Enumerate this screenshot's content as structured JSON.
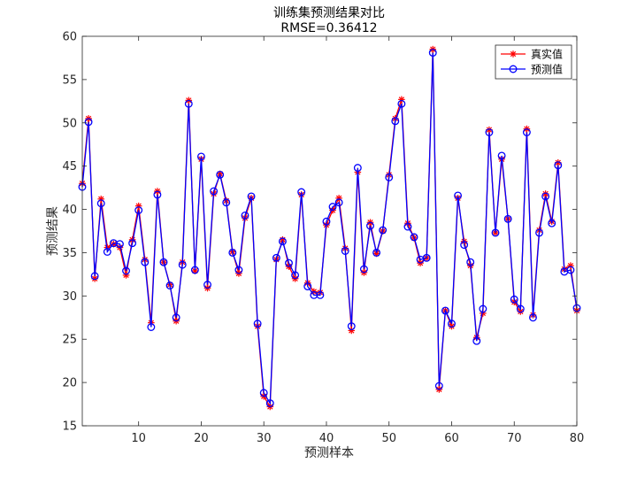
{
  "chart_data": {
    "type": "line",
    "title": "训练集预测结果对比",
    "subtitle": "RMSE=0.36412",
    "xlabel": "预测样本",
    "ylabel": "预测结果",
    "xlim": [
      1,
      80
    ],
    "ylim": [
      15,
      60
    ],
    "xticks": [
      10,
      20,
      30,
      40,
      50,
      60,
      70,
      80
    ],
    "yticks": [
      15,
      20,
      25,
      30,
      35,
      40,
      45,
      50,
      55,
      60
    ],
    "grid": false,
    "legend_position": "top-right",
    "x": [
      1,
      2,
      3,
      4,
      5,
      6,
      7,
      8,
      9,
      10,
      11,
      12,
      13,
      14,
      15,
      16,
      17,
      18,
      19,
      20,
      21,
      22,
      23,
      24,
      25,
      26,
      27,
      28,
      29,
      30,
      31,
      32,
      33,
      34,
      35,
      36,
      37,
      38,
      39,
      40,
      41,
      42,
      43,
      44,
      45,
      46,
      47,
      48,
      49,
      50,
      51,
      52,
      53,
      54,
      55,
      56,
      57,
      58,
      59,
      60,
      61,
      62,
      63,
      64,
      65,
      66,
      67,
      68,
      69,
      70,
      71,
      72,
      73,
      74,
      75,
      76,
      77,
      78,
      79,
      80
    ],
    "series": [
      {
        "name": "真实值",
        "color": "#ff0000",
        "marker": "asterisk",
        "values": [
          43.0,
          50.5,
          32.0,
          41.2,
          35.6,
          36.0,
          35.6,
          32.4,
          36.5,
          40.4,
          34.2,
          26.9,
          42.1,
          33.9,
          31.3,
          27.1,
          33.9,
          52.6,
          32.9,
          45.8,
          30.9,
          41.8,
          44.1,
          41.0,
          35.1,
          32.6,
          39.0,
          41.3,
          26.5,
          18.4,
          17.2,
          34.2,
          36.5,
          33.4,
          32.0,
          41.7,
          31.5,
          30.5,
          30.4,
          38.2,
          39.9,
          41.3,
          35.5,
          26.0,
          44.3,
          32.7,
          38.5,
          34.9,
          37.5,
          44.0,
          50.5,
          52.7,
          38.4,
          36.7,
          33.8,
          34.4,
          58.5,
          19.2,
          28.3,
          26.5,
          41.3,
          36.3,
          33.5,
          25.2,
          28.0,
          49.2,
          37.3,
          45.8,
          38.9,
          29.3,
          28.2,
          49.3,
          27.8,
          37.6,
          41.8,
          38.6,
          45.4,
          33.1,
          33.5,
          28.3
        ]
      },
      {
        "name": "预测值",
        "color": "#0000ff",
        "marker": "circle",
        "values": [
          42.6,
          50.1,
          32.3,
          40.7,
          35.1,
          36.1,
          36.0,
          32.9,
          36.1,
          39.9,
          33.9,
          26.4,
          41.7,
          33.9,
          31.2,
          27.5,
          33.6,
          52.2,
          33.0,
          46.1,
          31.3,
          42.1,
          44.0,
          40.8,
          35.0,
          33.0,
          39.3,
          41.5,
          26.8,
          18.8,
          17.6,
          34.4,
          36.3,
          33.8,
          32.4,
          42.0,
          31.1,
          30.1,
          30.1,
          38.6,
          40.3,
          40.8,
          35.2,
          26.5,
          44.8,
          33.1,
          38.1,
          35.0,
          37.6,
          43.7,
          50.2,
          52.2,
          38.0,
          36.8,
          34.2,
          34.4,
          58.1,
          19.6,
          28.3,
          26.8,
          41.6,
          35.9,
          33.9,
          24.8,
          28.5,
          48.9,
          37.3,
          46.2,
          38.9,
          29.6,
          28.5,
          48.9,
          27.5,
          37.3,
          41.5,
          38.4,
          45.1,
          32.8,
          33.0,
          28.6
        ]
      }
    ]
  }
}
